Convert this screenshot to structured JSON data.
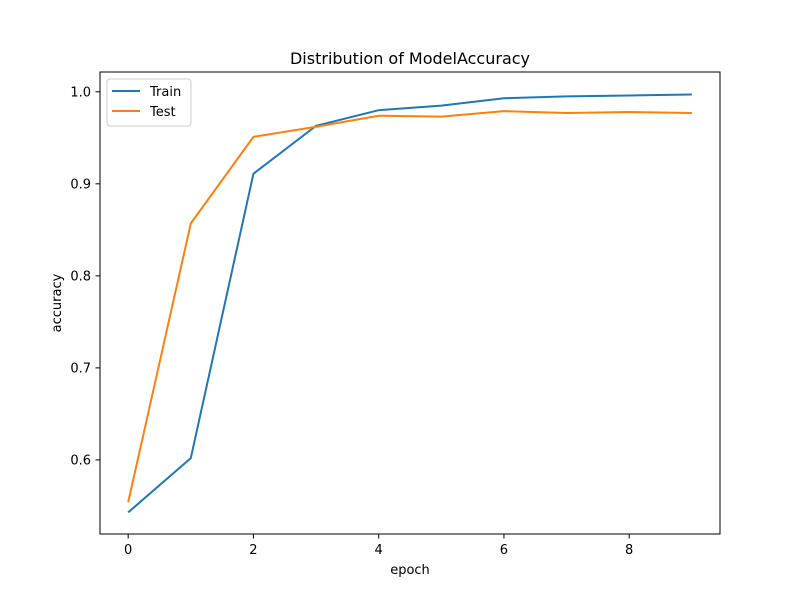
{
  "chart_data": {
    "type": "line",
    "title": "Distribution of ModelAccuracy",
    "xlabel": "epoch",
    "ylabel": "accuracy",
    "x": [
      0,
      1,
      2,
      3,
      4,
      5,
      6,
      7,
      8,
      9
    ],
    "xlim": [
      -0.45,
      9.45
    ],
    "ylim": [
      0.5195,
      1.0215
    ],
    "xticks": [
      0,
      2,
      4,
      6,
      8
    ],
    "xtick_labels": [
      "0",
      "2",
      "4",
      "6",
      "8"
    ],
    "yticks": [
      0.6,
      0.7,
      0.8,
      0.9,
      1.0
    ],
    "ytick_labels": [
      "0.6",
      "0.7",
      "0.8",
      "0.9",
      "1.0"
    ],
    "grid": false,
    "legend_position": "upper-left",
    "series": [
      {
        "name": "Train",
        "color": "#1f77b4",
        "values": [
          0.543,
          0.602,
          0.911,
          0.963,
          0.98,
          0.985,
          0.993,
          0.995,
          0.996,
          0.997
        ]
      },
      {
        "name": "Test",
        "color": "#ff7f0e",
        "values": [
          0.554,
          0.857,
          0.951,
          0.962,
          0.974,
          0.973,
          0.979,
          0.977,
          0.978,
          0.977
        ]
      }
    ]
  }
}
